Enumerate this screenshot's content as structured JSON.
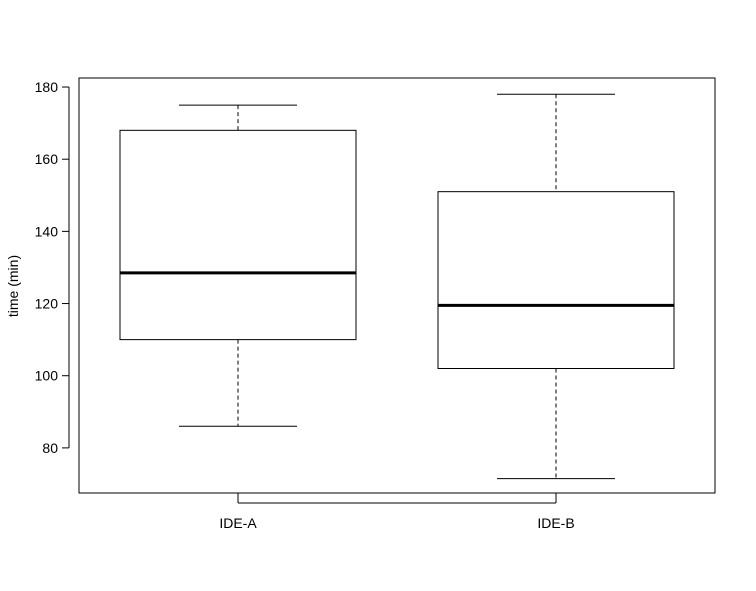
{
  "chart_data": {
    "type": "boxplot",
    "title": "",
    "xlabel": "",
    "ylabel": "time (min)",
    "ylim": [
      67.5,
      182.5
    ],
    "yticks": [
      80,
      100,
      120,
      140,
      160,
      180
    ],
    "categories": [
      "IDE-A",
      "IDE-B"
    ],
    "boxes": [
      {
        "name": "IDE-A",
        "min": 86,
        "q1": 110,
        "median": 128.5,
        "q3": 168,
        "max": 175
      },
      {
        "name": "IDE-B",
        "min": 71.5,
        "q1": 102,
        "median": 119.5,
        "q3": 151,
        "max": 178
      }
    ],
    "grid": false,
    "legend": "none"
  }
}
